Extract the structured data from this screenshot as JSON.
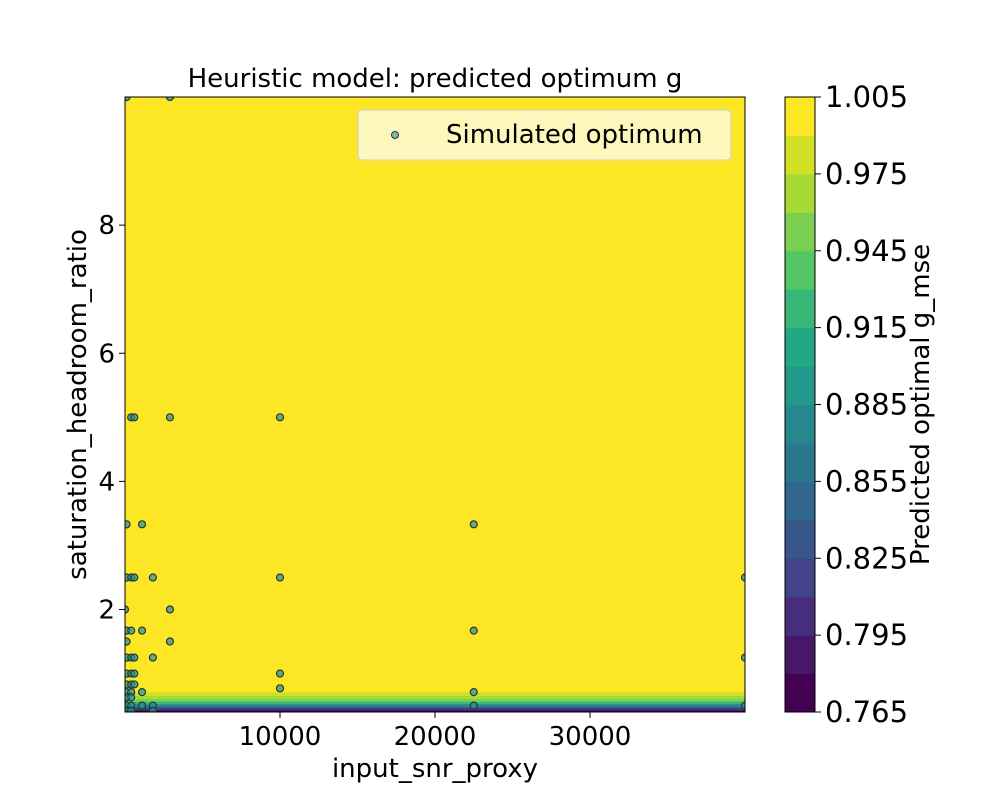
{
  "chart_data": {
    "type": "heatmap",
    "title": "Heuristic model: predicted optimum g",
    "xlabel": "input_snr_proxy",
    "ylabel": "saturation_headroom_ratio",
    "xlim": [
      0,
      40000
    ],
    "ylim": [
      0.4,
      10.0
    ],
    "x_ticks": [
      10000,
      20000,
      30000
    ],
    "x_tick_labels": [
      "10000",
      "20000",
      "30000"
    ],
    "y_ticks": [
      2,
      4,
      6,
      8
    ],
    "y_tick_labels": [
      "2",
      "4",
      "6",
      "8"
    ],
    "grid": false,
    "colorbar": {
      "label": "Predicted optimal g_mse",
      "min": 0.765,
      "max": 1.005,
      "step": 0.015,
      "tick_values": [
        0.765,
        0.795,
        0.825,
        0.855,
        0.885,
        0.915,
        0.945,
        0.975,
        1.005
      ],
      "tick_labels": [
        "0.765",
        "0.795",
        "0.825",
        "0.855",
        "0.885",
        "0.915",
        "0.945",
        "0.975",
        "1.005"
      ]
    },
    "heatmap_profile": [
      {
        "y": 0.4,
        "value": 0.77
      },
      {
        "y": 0.43,
        "value": 0.8
      },
      {
        "y": 0.46,
        "value": 0.84
      },
      {
        "y": 0.49,
        "value": 0.88
      },
      {
        "y": 0.53,
        "value": 0.92
      },
      {
        "y": 0.57,
        "value": 0.95
      },
      {
        "y": 0.61,
        "value": 0.975
      },
      {
        "y": 0.66,
        "value": 0.99
      },
      {
        "y": 0.72,
        "value": 1.0
      },
      {
        "y": 10.0,
        "value": 1.0
      }
    ],
    "legend": {
      "label": "Simulated optimum",
      "position": "top-right"
    },
    "scatter": [
      {
        "x": 100,
        "y": 10.0
      },
      {
        "x": 2900,
        "y": 10.0
      },
      {
        "x": 400,
        "y": 5.0
      },
      {
        "x": 600,
        "y": 5.0
      },
      {
        "x": 2900,
        "y": 5.0
      },
      {
        "x": 10000,
        "y": 5.0
      },
      {
        "x": 100,
        "y": 3.33
      },
      {
        "x": 1100,
        "y": 3.33
      },
      {
        "x": 22500,
        "y": 3.33
      },
      {
        "x": 100,
        "y": 2.5
      },
      {
        "x": 400,
        "y": 2.5
      },
      {
        "x": 600,
        "y": 2.5
      },
      {
        "x": 1800,
        "y": 2.5
      },
      {
        "x": 10000,
        "y": 2.5
      },
      {
        "x": 40000,
        "y": 2.5
      },
      {
        "x": 0,
        "y": 2.0
      },
      {
        "x": 2900,
        "y": 2.0
      },
      {
        "x": 100,
        "y": 1.67
      },
      {
        "x": 400,
        "y": 1.67
      },
      {
        "x": 1100,
        "y": 1.67
      },
      {
        "x": 22500,
        "y": 1.67
      },
      {
        "x": 100,
        "y": 1.5
      },
      {
        "x": 2900,
        "y": 1.5
      },
      {
        "x": 100,
        "y": 1.25
      },
      {
        "x": 400,
        "y": 1.25
      },
      {
        "x": 600,
        "y": 1.25
      },
      {
        "x": 1800,
        "y": 1.25
      },
      {
        "x": 40000,
        "y": 1.25
      },
      {
        "x": 100,
        "y": 1.0
      },
      {
        "x": 400,
        "y": 1.0
      },
      {
        "x": 600,
        "y": 1.0
      },
      {
        "x": 10000,
        "y": 1.0
      },
      {
        "x": 100,
        "y": 0.83
      },
      {
        "x": 400,
        "y": 0.83
      },
      {
        "x": 600,
        "y": 0.83
      },
      {
        "x": 10000,
        "y": 0.77
      },
      {
        "x": 100,
        "y": 0.71
      },
      {
        "x": 400,
        "y": 0.71
      },
      {
        "x": 1100,
        "y": 0.71
      },
      {
        "x": 22500,
        "y": 0.71
      },
      {
        "x": 100,
        "y": 0.63
      },
      {
        "x": 400,
        "y": 0.63
      },
      {
        "x": 100,
        "y": 0.5
      },
      {
        "x": 400,
        "y": 0.5
      },
      {
        "x": 1100,
        "y": 0.5
      },
      {
        "x": 1800,
        "y": 0.5
      },
      {
        "x": 22500,
        "y": 0.5
      },
      {
        "x": 40000,
        "y": 0.5
      },
      {
        "x": 100,
        "y": 0.42
      },
      {
        "x": 400,
        "y": 0.42
      },
      {
        "x": 1800,
        "y": 0.42
      }
    ]
  }
}
